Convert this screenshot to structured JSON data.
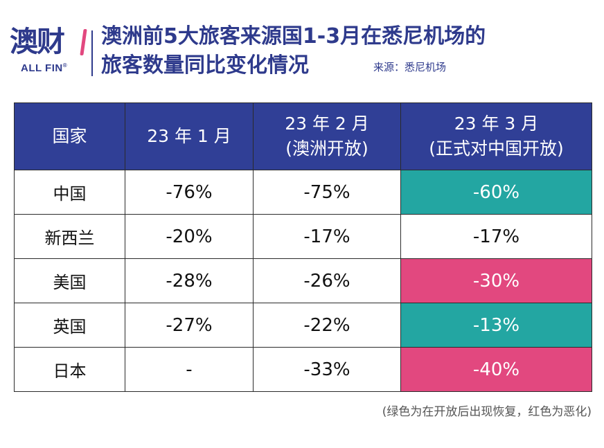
{
  "logo": {
    "name_cn": "澳财",
    "name_en": "ALL FIN",
    "registered": "®"
  },
  "header": {
    "title_line1": "澳洲前5大旅客来源国1-3月在悉尼机场的",
    "title_line2": "旅客数量同比变化情况",
    "source": "来源：悉尼机场"
  },
  "table": {
    "columns": [
      {
        "line1": "国家",
        "line2": ""
      },
      {
        "line1": "23 年 1 月",
        "line2": ""
      },
      {
        "line1": "23 年 2 月",
        "line2": "(澳洲开放)"
      },
      {
        "line1": "23 年 3 月",
        "line2": "(正式对中国开放)"
      }
    ],
    "rows": [
      {
        "country": "中国",
        "jan": "-76%",
        "feb": "-75%",
        "mar": "-60%",
        "mar_status": "good"
      },
      {
        "country": "新西兰",
        "jan": "-20%",
        "feb": "-17%",
        "mar": "-17%",
        "mar_status": "none"
      },
      {
        "country": "美国",
        "jan": "-28%",
        "feb": "-26%",
        "mar": "-30%",
        "mar_status": "bad"
      },
      {
        "country": "英国",
        "jan": "-27%",
        "feb": "-22%",
        "mar": "-13%",
        "mar_status": "good"
      },
      {
        "country": "日本",
        "jan": "-",
        "feb": "-33%",
        "mar": "-40%",
        "mar_status": "bad"
      }
    ]
  },
  "colors": {
    "header_bg": "#303f96",
    "good": "#23a6a2",
    "bad": "#e2487f",
    "brand": "#2e3a8c"
  },
  "footnote": "(绿色为在开放后出现恢复，红色为恶化)"
}
